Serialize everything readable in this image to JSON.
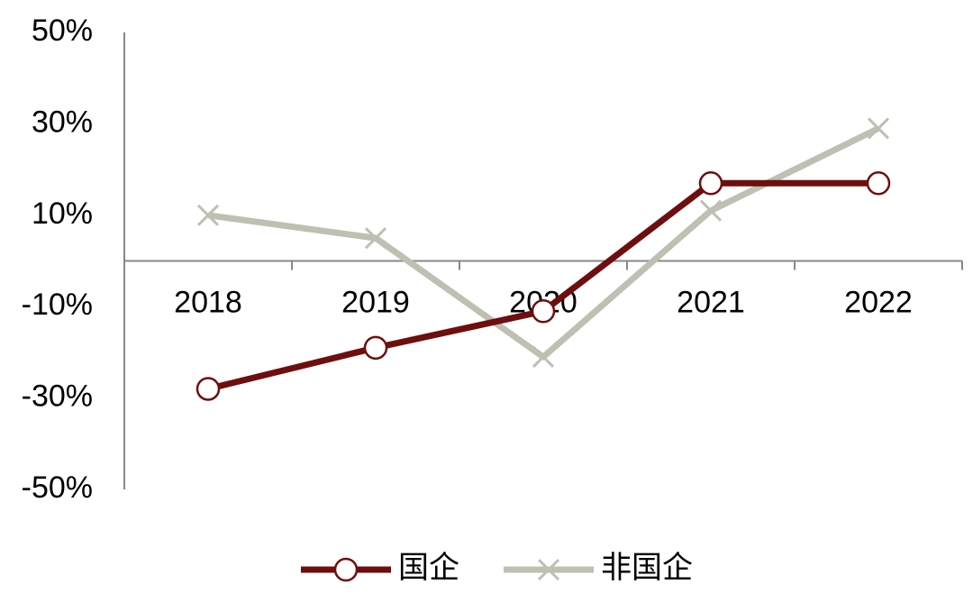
{
  "chart_data": {
    "type": "line",
    "categories": [
      "2018",
      "2019",
      "2020",
      "2021",
      "2022"
    ],
    "series": [
      {
        "name": "国企",
        "color": "#6e0e0e",
        "marker": "circle",
        "values": [
          -28,
          -19,
          -11,
          17,
          17
        ]
      },
      {
        "name": "非国企",
        "color": "#bfbfb2",
        "marker": "x",
        "values": [
          10,
          5,
          -21,
          11,
          29
        ]
      }
    ],
    "ylim": [
      -50,
      50
    ],
    "yticks": [
      {
        "value": -50,
        "label": "-50%"
      },
      {
        "value": -30,
        "label": "-30%"
      },
      {
        "value": -10,
        "label": "-10%"
      },
      {
        "value": 10,
        "label": "10%"
      },
      {
        "value": 30,
        "label": "30%"
      },
      {
        "value": 50,
        "label": "50%"
      }
    ],
    "grid": false,
    "legend": "bottom"
  }
}
